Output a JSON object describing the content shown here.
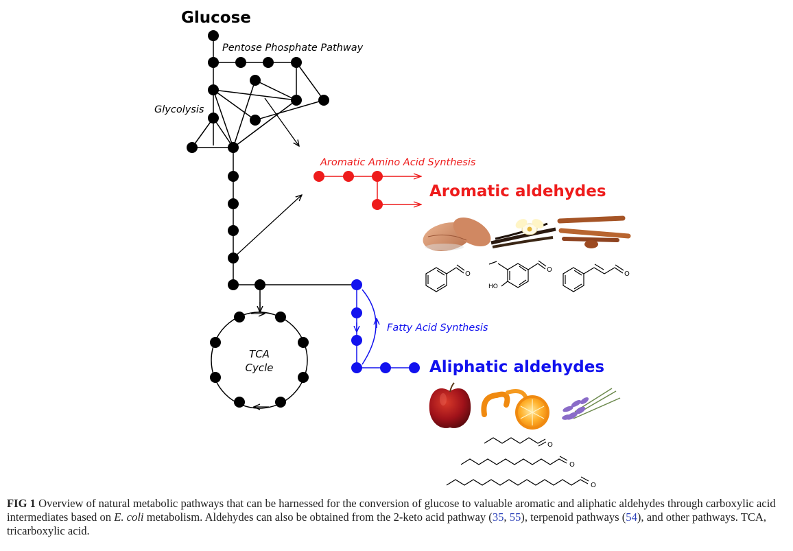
{
  "figure": {
    "glucose_label": "Glucose",
    "ppp_label": "Pentose Phosphate Pathway",
    "glycolysis_label": "Glycolysis",
    "aas_label": "Aromatic Amino Acid Synthesis",
    "aromatic_title": "Aromatic aldehydes",
    "tca_label_line1": "TCA",
    "tca_label_line2": "Cycle",
    "fas_label": "Fatty Acid Synthesis",
    "aliphatic_title": "Aliphatic aldehydes",
    "vanillin_oh": "HO",
    "aldehyde_o": "O",
    "colors": {
      "core": "#000000",
      "aromatic": "#ee1c1c",
      "aliphatic": "#1212ee"
    },
    "images": {
      "aromatic": [
        "almond-image",
        "vanilla-image",
        "cinnamon-image"
      ],
      "aliphatic": [
        "apple-image",
        "orange-image",
        "lavender-image"
      ]
    }
  },
  "caption": {
    "label": "FIG 1",
    "text1": " Overview of natural metabolic pathways that can be harnessed for the conversion of glucose to valuable aromatic and aliphatic aldehydes through carboxylic acid intermediates based on ",
    "organism": "E. coli",
    "text2": " metabolism. Aldehydes can also be obtained from the 2-keto acid pathway (",
    "ref1": "35",
    "sep1": ", ",
    "ref2": "55",
    "text3": "), terpenoid pathways (",
    "ref3": "54",
    "text4": "), and other pathways. TCA, tricarboxylic acid."
  }
}
